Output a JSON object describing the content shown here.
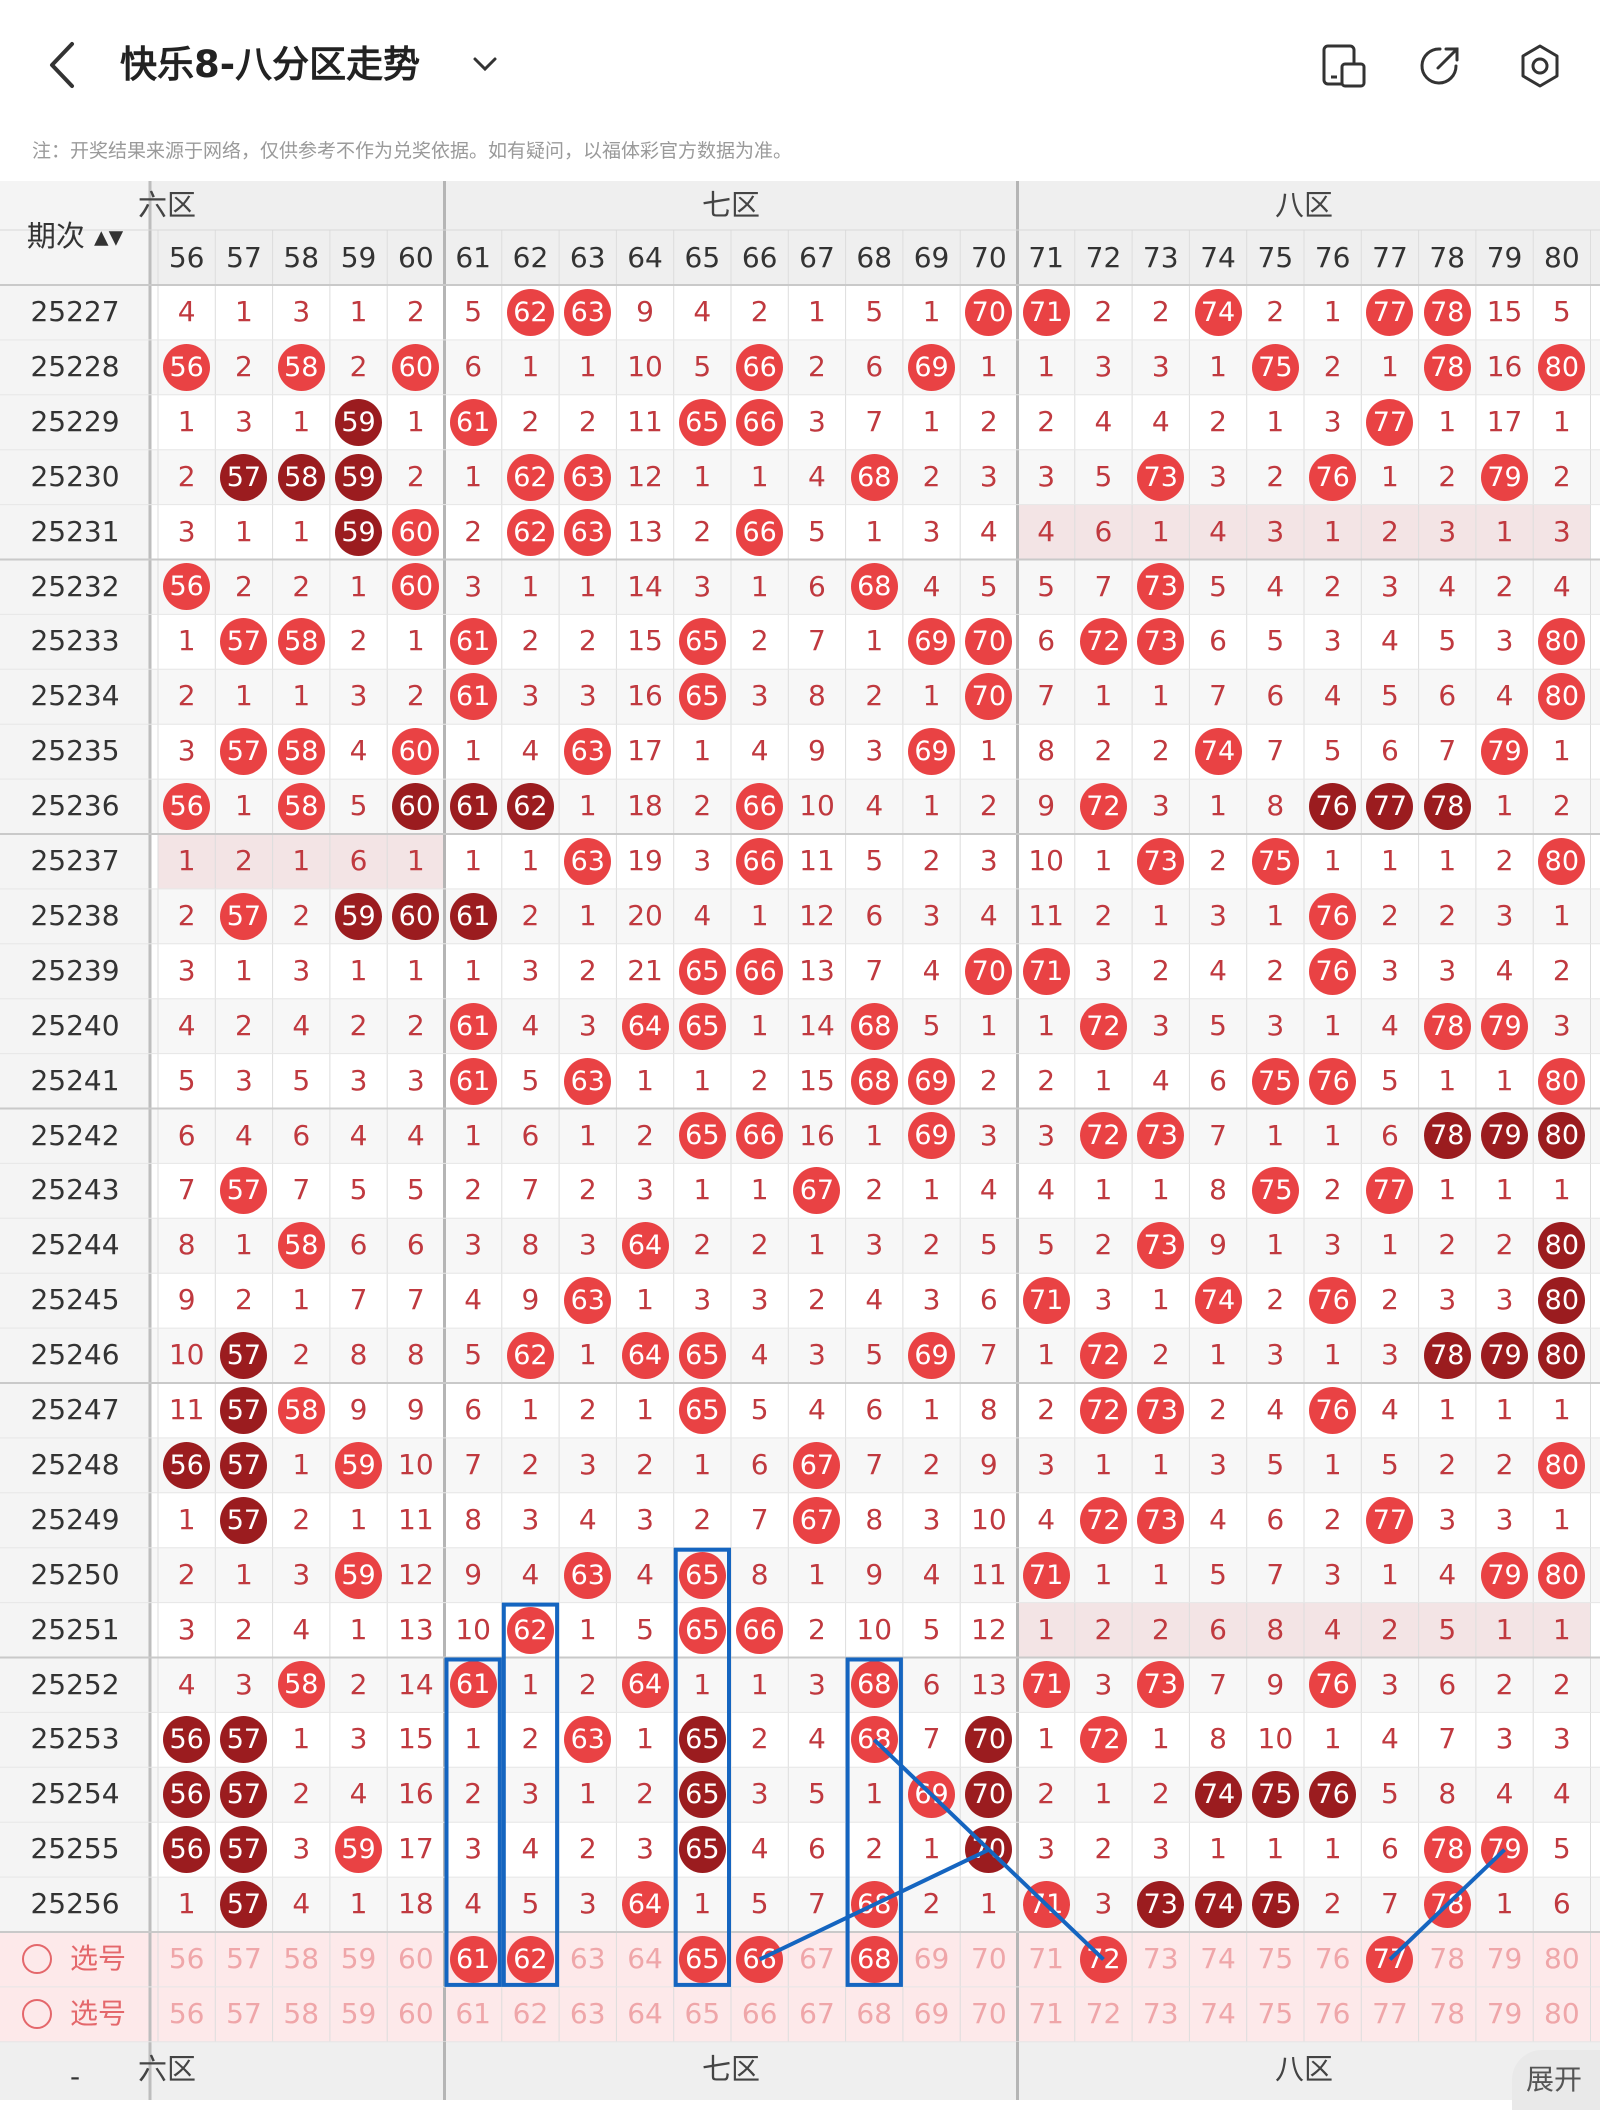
{
  "header": {
    "title": "快乐8-八分区走势",
    "icons": [
      "back-icon",
      "chevron-down-icon",
      "device-icon",
      "share-icon",
      "settings-icon"
    ]
  },
  "notice": "注：开奖结果来源于网络，仅供参考不作为兑奖依据。如有疑问，以福体彩官方数据为准。",
  "table": {
    "issue_header": "期次",
    "zones": [
      "六区",
      "七区",
      "八区"
    ],
    "columns": [
      56,
      57,
      58,
      59,
      60,
      61,
      62,
      63,
      64,
      65,
      66,
      67,
      68,
      69,
      70,
      71,
      72,
      73,
      74,
      75,
      76,
      77,
      78,
      79,
      80
    ],
    "rows": [
      {
        "issue": "25227",
        "cells": [
          "4",
          "1",
          "3",
          "1",
          "2",
          "5",
          "R62",
          "R63",
          "9",
          "4",
          "2",
          "1",
          "5",
          "1",
          "R70",
          "R71",
          "2",
          "2",
          "R74",
          "2",
          "1",
          "R77",
          "R78",
          "15",
          "5"
        ]
      },
      {
        "issue": "25228",
        "cells": [
          "R56",
          "2",
          "R58",
          "2",
          "R60",
          "6",
          "1",
          "1",
          "10",
          "5",
          "R66",
          "2",
          "6",
          "R69",
          "1",
          "1",
          "3",
          "3",
          "1",
          "R75",
          "2",
          "1",
          "R78",
          "16",
          "R80"
        ]
      },
      {
        "issue": "25229",
        "cells": [
          "1",
          "3",
          "1",
          "D59",
          "1",
          "R61",
          "2",
          "2",
          "11",
          "R65",
          "R66",
          "3",
          "7",
          "1",
          "2",
          "2",
          "4",
          "4",
          "2",
          "1",
          "3",
          "R77",
          "1",
          "17",
          "1"
        ]
      },
      {
        "issue": "25230",
        "cells": [
          "2",
          "D57",
          "D58",
          "D59",
          "2",
          "1",
          "R62",
          "R63",
          "12",
          "1",
          "1",
          "4",
          "R68",
          "2",
          "3",
          "3",
          "5",
          "R73",
          "3",
          "2",
          "R76",
          "1",
          "2",
          "R79",
          "2"
        ]
      },
      {
        "issue": "25231",
        "cells": [
          "3",
          "1",
          "1",
          "D59",
          "R60",
          "2",
          "R62",
          "R63",
          "13",
          "2",
          "R66",
          "5",
          "1",
          "3",
          "4",
          "4",
          "6",
          "1",
          "4",
          "3",
          "1",
          "2",
          "3",
          "1",
          "3"
        ]
      },
      {
        "issue": "25232",
        "cells": [
          "R56",
          "2",
          "2",
          "1",
          "R60",
          "3",
          "1",
          "1",
          "14",
          "3",
          "1",
          "6",
          "R68",
          "4",
          "5",
          "5",
          "7",
          "R73",
          "5",
          "4",
          "2",
          "3",
          "4",
          "2",
          "4"
        ]
      },
      {
        "issue": "25233",
        "cells": [
          "1",
          "R57",
          "R58",
          "2",
          "1",
          "R61",
          "2",
          "2",
          "15",
          "R65",
          "2",
          "7",
          "1",
          "R69",
          "R70",
          "6",
          "R72",
          "R73",
          "6",
          "5",
          "3",
          "4",
          "5",
          "3",
          "R80"
        ]
      },
      {
        "issue": "25234",
        "cells": [
          "2",
          "1",
          "1",
          "3",
          "2",
          "R61",
          "3",
          "3",
          "16",
          "R65",
          "3",
          "8",
          "2",
          "1",
          "R70",
          "7",
          "1",
          "1",
          "7",
          "6",
          "4",
          "5",
          "6",
          "4",
          "R80"
        ]
      },
      {
        "issue": "25235",
        "cells": [
          "3",
          "R57",
          "R58",
          "4",
          "R60",
          "1",
          "4",
          "R63",
          "17",
          "1",
          "4",
          "9",
          "3",
          "R69",
          "1",
          "8",
          "2",
          "2",
          "R74",
          "7",
          "5",
          "6",
          "7",
          "R79",
          "1"
        ]
      },
      {
        "issue": "25236",
        "cells": [
          "R56",
          "1",
          "R58",
          "5",
          "D60",
          "D61",
          "D62",
          "1",
          "18",
          "2",
          "R66",
          "10",
          "4",
          "1",
          "2",
          "9",
          "R72",
          "3",
          "1",
          "8",
          "D76",
          "D77",
          "D78",
          "1",
          "2"
        ]
      },
      {
        "issue": "25237",
        "cells": [
          "1",
          "2",
          "1",
          "6",
          "1",
          "1",
          "1",
          "R63",
          "19",
          "3",
          "R66",
          "11",
          "5",
          "2",
          "3",
          "10",
          "1",
          "R73",
          "2",
          "R75",
          "1",
          "1",
          "1",
          "2",
          "R80"
        ]
      },
      {
        "issue": "25238",
        "cells": [
          "2",
          "R57",
          "2",
          "D59",
          "D60",
          "D61",
          "2",
          "1",
          "20",
          "4",
          "1",
          "12",
          "6",
          "3",
          "4",
          "11",
          "2",
          "1",
          "3",
          "1",
          "R76",
          "2",
          "2",
          "3",
          "1"
        ]
      },
      {
        "issue": "25239",
        "cells": [
          "3",
          "1",
          "3",
          "1",
          "1",
          "1",
          "3",
          "2",
          "21",
          "R65",
          "R66",
          "13",
          "7",
          "4",
          "R70",
          "R71",
          "3",
          "2",
          "4",
          "2",
          "R76",
          "3",
          "3",
          "4",
          "2"
        ]
      },
      {
        "issue": "25240",
        "cells": [
          "4",
          "2",
          "4",
          "2",
          "2",
          "R61",
          "4",
          "3",
          "R64",
          "R65",
          "1",
          "14",
          "R68",
          "5",
          "1",
          "1",
          "R72",
          "3",
          "5",
          "3",
          "1",
          "4",
          "R78",
          "R79",
          "3"
        ]
      },
      {
        "issue": "25241",
        "cells": [
          "5",
          "3",
          "5",
          "3",
          "3",
          "R61",
          "5",
          "R63",
          "1",
          "1",
          "2",
          "15",
          "R68",
          "R69",
          "2",
          "2",
          "1",
          "4",
          "6",
          "R75",
          "R76",
          "5",
          "1",
          "1",
          "R80"
        ]
      },
      {
        "issue": "25242",
        "cells": [
          "6",
          "4",
          "6",
          "4",
          "4",
          "1",
          "6",
          "1",
          "2",
          "R65",
          "R66",
          "16",
          "1",
          "R69",
          "3",
          "3",
          "R72",
          "R73",
          "7",
          "1",
          "1",
          "6",
          "D78",
          "D79",
          "D80"
        ]
      },
      {
        "issue": "25243",
        "cells": [
          "7",
          "R57",
          "7",
          "5",
          "5",
          "2",
          "7",
          "2",
          "3",
          "1",
          "1",
          "R67",
          "2",
          "1",
          "4",
          "4",
          "1",
          "1",
          "8",
          "R75",
          "2",
          "R77",
          "1",
          "1",
          "1"
        ]
      },
      {
        "issue": "25244",
        "cells": [
          "8",
          "1",
          "R58",
          "6",
          "6",
          "3",
          "8",
          "3",
          "R64",
          "2",
          "2",
          "1",
          "3",
          "2",
          "5",
          "5",
          "2",
          "R73",
          "9",
          "1",
          "3",
          "1",
          "2",
          "2",
          "D80"
        ]
      },
      {
        "issue": "25245",
        "cells": [
          "9",
          "2",
          "1",
          "7",
          "7",
          "4",
          "9",
          "R63",
          "1",
          "3",
          "3",
          "2",
          "4",
          "3",
          "6",
          "R71",
          "3",
          "1",
          "R74",
          "2",
          "R76",
          "2",
          "3",
          "3",
          "D80"
        ]
      },
      {
        "issue": "25246",
        "cells": [
          "10",
          "D57",
          "2",
          "8",
          "8",
          "5",
          "R62",
          "1",
          "R64",
          "R65",
          "4",
          "3",
          "5",
          "R69",
          "7",
          "1",
          "R72",
          "2",
          "1",
          "3",
          "1",
          "3",
          "D78",
          "D79",
          "D80"
        ]
      },
      {
        "issue": "25247",
        "cells": [
          "11",
          "D57",
          "R58",
          "9",
          "9",
          "6",
          "1",
          "2",
          "1",
          "R65",
          "5",
          "4",
          "6",
          "1",
          "8",
          "2",
          "R72",
          "R73",
          "2",
          "4",
          "R76",
          "4",
          "1",
          "1",
          "1"
        ]
      },
      {
        "issue": "25248",
        "cells": [
          "D56",
          "D57",
          "1",
          "R59",
          "10",
          "7",
          "2",
          "3",
          "2",
          "1",
          "6",
          "R67",
          "7",
          "2",
          "9",
          "3",
          "1",
          "1",
          "3",
          "5",
          "1",
          "5",
          "2",
          "2",
          "R80"
        ]
      },
      {
        "issue": "25249",
        "cells": [
          "1",
          "D57",
          "2",
          "1",
          "11",
          "8",
          "3",
          "4",
          "3",
          "2",
          "7",
          "R67",
          "8",
          "3",
          "10",
          "4",
          "R72",
          "R73",
          "4",
          "6",
          "2",
          "R77",
          "3",
          "3",
          "1"
        ]
      },
      {
        "issue": "25250",
        "cells": [
          "2",
          "1",
          "3",
          "R59",
          "12",
          "9",
          "4",
          "R63",
          "4",
          "R65",
          "8",
          "1",
          "9",
          "4",
          "11",
          "R71",
          "1",
          "1",
          "5",
          "7",
          "3",
          "1",
          "4",
          "R79",
          "R80"
        ]
      },
      {
        "issue": "25251",
        "cells": [
          "3",
          "2",
          "4",
          "1",
          "13",
          "10",
          "R62",
          "1",
          "5",
          "R65",
          "R66",
          "2",
          "10",
          "5",
          "12",
          "1",
          "2",
          "2",
          "6",
          "8",
          "4",
          "2",
          "5",
          "1",
          "1"
        ]
      },
      {
        "issue": "25252",
        "cells": [
          "4",
          "3",
          "R58",
          "2",
          "14",
          "R61",
          "1",
          "2",
          "R64",
          "1",
          "1",
          "3",
          "R68",
          "6",
          "13",
          "R71",
          "3",
          "R73",
          "7",
          "9",
          "R76",
          "3",
          "6",
          "2",
          "2"
        ]
      },
      {
        "issue": "25253",
        "cells": [
          "D56",
          "D57",
          "1",
          "3",
          "15",
          "1",
          "2",
          "R63",
          "1",
          "D65",
          "2",
          "4",
          "R68",
          "7",
          "D70",
          "1",
          "R72",
          "1",
          "8",
          "10",
          "1",
          "4",
          "7",
          "3",
          "3"
        ]
      },
      {
        "issue": "25254",
        "cells": [
          "D56",
          "D57",
          "2",
          "4",
          "16",
          "2",
          "3",
          "1",
          "2",
          "D65",
          "3",
          "5",
          "1",
          "R69",
          "D70",
          "2",
          "1",
          "2",
          "D74",
          "D75",
          "D76",
          "5",
          "8",
          "4",
          "4"
        ]
      },
      {
        "issue": "25255",
        "cells": [
          "D56",
          "D57",
          "3",
          "R59",
          "17",
          "3",
          "4",
          "2",
          "3",
          "D65",
          "4",
          "6",
          "2",
          "1",
          "D70",
          "3",
          "2",
          "3",
          "1",
          "1",
          "1",
          "6",
          "R78",
          "R79",
          "5"
        ]
      },
      {
        "issue": "25256",
        "cells": [
          "1",
          "D57",
          "4",
          "1",
          "18",
          "4",
          "5",
          "3",
          "R64",
          "1",
          "5",
          "7",
          "R68",
          "2",
          "1",
          "R71",
          "3",
          "D73",
          "D74",
          "D75",
          "2",
          "7",
          "R78",
          "1",
          "6"
        ]
      }
    ],
    "pick_rows": [
      {
        "label": "选号",
        "cells": [
          "56",
          "57",
          "58",
          "59",
          "60",
          "R61",
          "R62",
          "63",
          "64",
          "R65",
          "R66",
          "67",
          "R68",
          "69",
          "70",
          "71",
          "R72",
          "73",
          "74",
          "75",
          "76",
          "R77",
          "78",
          "79",
          "80"
        ]
      },
      {
        "label": "选号",
        "cells": [
          "56",
          "57",
          "58",
          "59",
          "60",
          "61",
          "62",
          "63",
          "64",
          "65",
          "66",
          "67",
          "68",
          "69",
          "70",
          "71",
          "72",
          "73",
          "74",
          "75",
          "76",
          "77",
          "78",
          "79",
          "80"
        ]
      }
    ],
    "footer_zones": [
      "六区",
      "七区",
      "八区"
    ],
    "footer_issue": "-"
  },
  "expand_label": "展开",
  "colors": {
    "ball_red": "#e94244",
    "ball_dark": "#9b1c1f",
    "digit": "#c0393f",
    "annotation": "#1565c0"
  }
}
